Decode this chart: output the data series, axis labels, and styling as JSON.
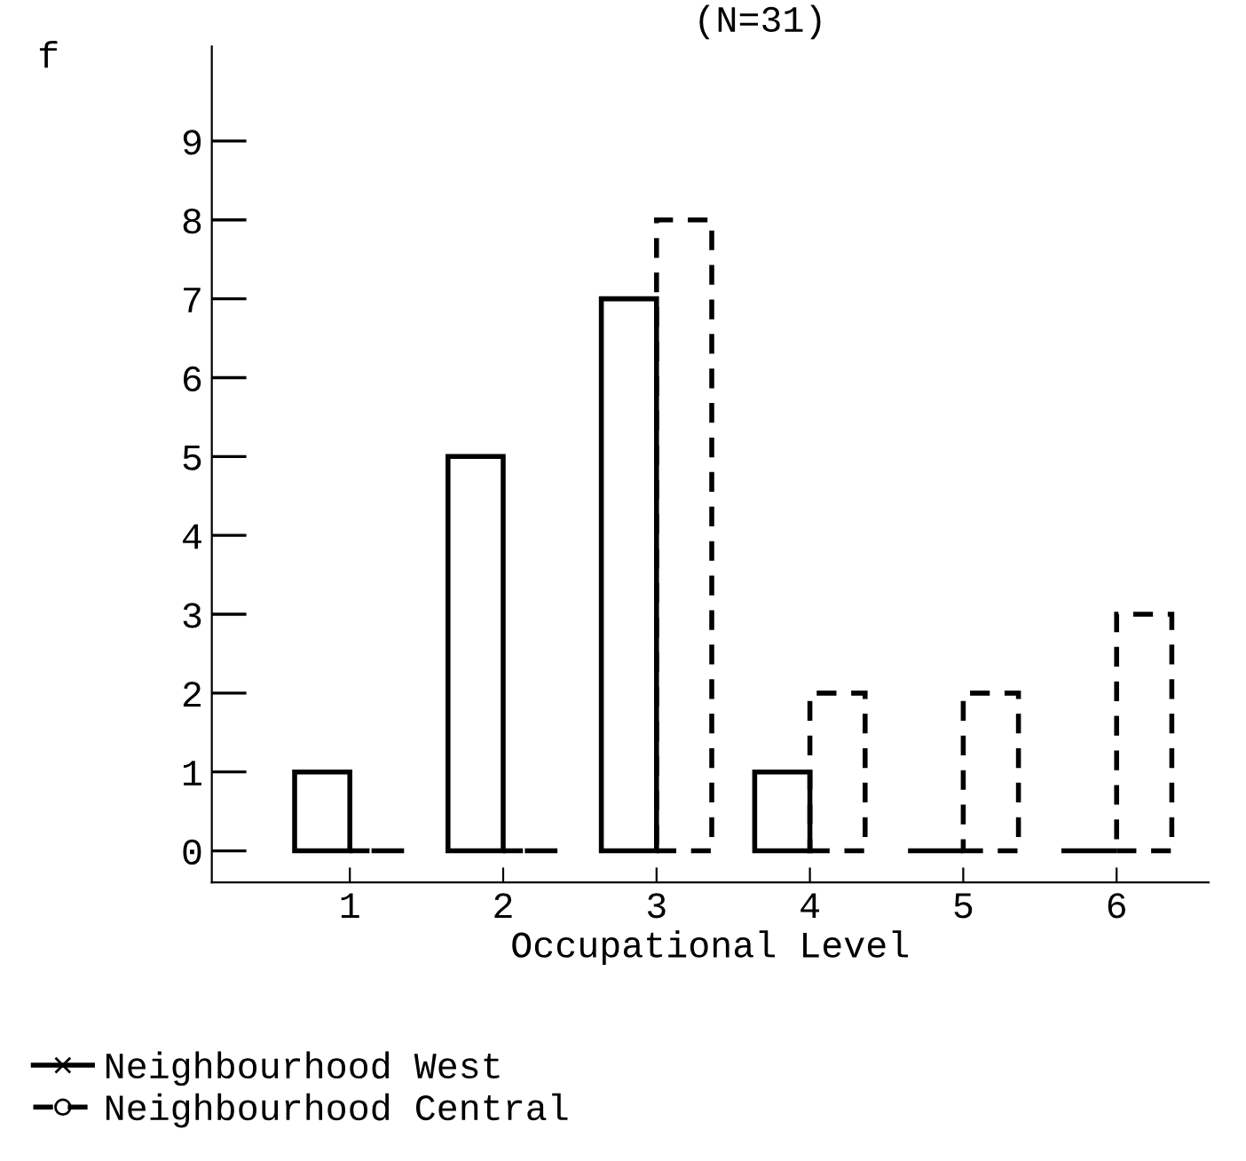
{
  "chart_data": {
    "type": "bar",
    "title": "(N=31)",
    "xlabel": "Occupational Level",
    "ylabel": "f",
    "categories": [
      "1",
      "2",
      "3",
      "4",
      "5",
      "6"
    ],
    "series": [
      {
        "name": "Neighbourhood West",
        "color": "#000000",
        "line_style": "solid",
        "marker": "cross",
        "values": [
          1,
          5,
          7,
          1,
          0,
          0
        ]
      },
      {
        "name": "Neighbourhood Central",
        "color": "#000000",
        "line_style": "dashed",
        "marker": "circle",
        "values": [
          0,
          0,
          8,
          2,
          2,
          3
        ]
      }
    ],
    "ylim": [
      -0.4,
      10.2
    ],
    "yticks": [
      0,
      1,
      2,
      3,
      4,
      5,
      6,
      7,
      8,
      9
    ],
    "grid": false,
    "legend": "bottom"
  }
}
